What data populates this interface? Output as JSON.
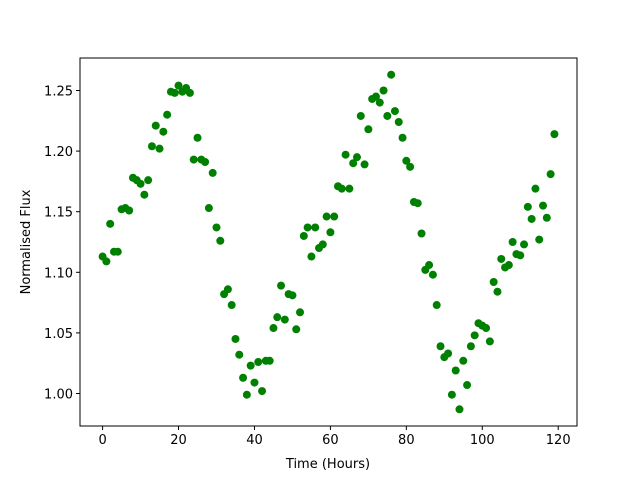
{
  "chart_data": {
    "type": "scatter",
    "xlabel": "Time (Hours)",
    "ylabel": "Normalised Flux",
    "color": "#008000",
    "x": [
      0,
      1,
      2,
      3,
      4,
      5,
      6,
      7,
      8,
      9,
      10,
      11,
      12,
      13,
      14,
      15,
      16,
      17,
      18,
      19,
      20,
      21,
      22,
      23,
      24,
      25,
      26,
      27,
      28,
      29,
      30,
      31,
      32,
      33,
      34,
      35,
      36,
      37,
      38,
      39,
      40,
      41,
      42,
      43,
      44,
      45,
      46,
      47,
      48,
      49,
      50,
      51,
      52,
      53,
      54,
      55,
      56,
      57,
      58,
      59,
      60,
      61,
      62,
      63,
      64,
      65,
      66,
      67,
      68,
      69,
      70,
      71,
      72,
      73,
      74,
      75,
      76,
      77,
      78,
      79,
      80,
      81,
      82,
      83,
      84,
      85,
      86,
      87,
      88,
      89,
      90,
      91,
      92,
      93,
      94,
      95,
      96,
      97,
      98,
      99,
      100,
      101,
      102,
      103,
      104,
      105,
      106,
      107,
      108,
      109,
      110,
      111,
      112,
      113,
      114,
      115,
      116,
      117,
      118,
      119
    ],
    "values": [
      1.113,
      1.109,
      1.14,
      1.117,
      1.117,
      1.152,
      1.153,
      1.151,
      1.178,
      1.176,
      1.173,
      1.164,
      1.176,
      1.204,
      1.221,
      1.202,
      1.216,
      1.23,
      1.249,
      1.248,
      1.254,
      1.249,
      1.252,
      1.248,
      1.193,
      1.211,
      1.193,
      1.191,
      1.153,
      1.182,
      1.137,
      1.126,
      1.082,
      1.086,
      1.073,
      1.045,
      1.032,
      1.013,
      0.999,
      1.023,
      1.009,
      1.026,
      1.002,
      1.027,
      1.027,
      1.054,
      1.063,
      1.089,
      1.061,
      1.082,
      1.081,
      1.053,
      1.067,
      1.13,
      1.137,
      1.113,
      1.137,
      1.12,
      1.123,
      1.146,
      1.133,
      1.146,
      1.171,
      1.169,
      1.197,
      1.169,
      1.19,
      1.195,
      1.229,
      1.189,
      1.218,
      1.243,
      1.245,
      1.24,
      1.25,
      1.229,
      1.263,
      1.233,
      1.224,
      1.211,
      1.192,
      1.187,
      1.158,
      1.157,
      1.132,
      1.102,
      1.106,
      1.098,
      1.073,
      1.039,
      1.03,
      1.033,
      0.999,
      1.019,
      0.987,
      1.027,
      1.007,
      1.039,
      1.048,
      1.058,
      1.056,
      1.054,
      1.043,
      1.092,
      1.084,
      1.111,
      1.104,
      1.106,
      1.125,
      1.115,
      1.114,
      1.123,
      1.154,
      1.144,
      1.169,
      1.127,
      1.155,
      1.145,
      1.181,
      1.214
    ],
    "xlim": [
      -5.95,
      124.95
    ],
    "ylim": [
      0.9732,
      1.2768
    ],
    "xticks": [
      0,
      20,
      40,
      60,
      80,
      100,
      120
    ],
    "yticks": [
      {
        "value": 1,
        "label": "1.00"
      },
      1.05,
      {
        "value": 1.1,
        "label": "1.10"
      },
      1.15,
      {
        "value": 1.2,
        "label": "1.20"
      },
      1.25
    ]
  }
}
